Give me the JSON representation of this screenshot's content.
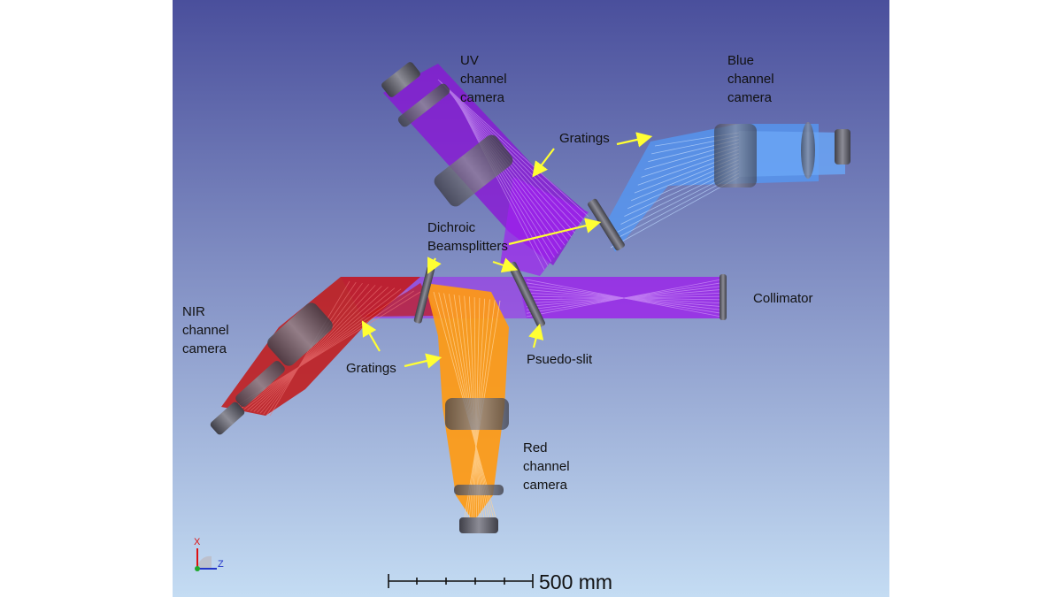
{
  "labels": {
    "uv_camera": [
      "UV",
      "channel",
      "camera"
    ],
    "blue_camera": [
      "Blue",
      "channel",
      "camera"
    ],
    "gratings_top": "Gratings",
    "dichroic": [
      "Dichroic",
      "Beamsplitters"
    ],
    "collimator": "Collimator",
    "nir_camera": [
      "NIR",
      "channel",
      "camera"
    ],
    "gratings_bottom": "Gratings",
    "pseudo_slit": "Psuedo-slit",
    "red_camera": [
      "Red",
      "channel",
      "camera"
    ]
  },
  "scale_bar": {
    "label": "500 mm"
  },
  "axes": {
    "x": "X",
    "z": "Z"
  },
  "colors": {
    "background_top": "#4a4f9c",
    "background_bottom": "#c4dcf3",
    "uv": "#8b14d6",
    "violet_beam": "#a020f0",
    "blue": "#5596f0",
    "red": "#c11a1a",
    "orange": "#ff9a12",
    "optic": "#5c5c66",
    "arrow": "#ffff33"
  }
}
